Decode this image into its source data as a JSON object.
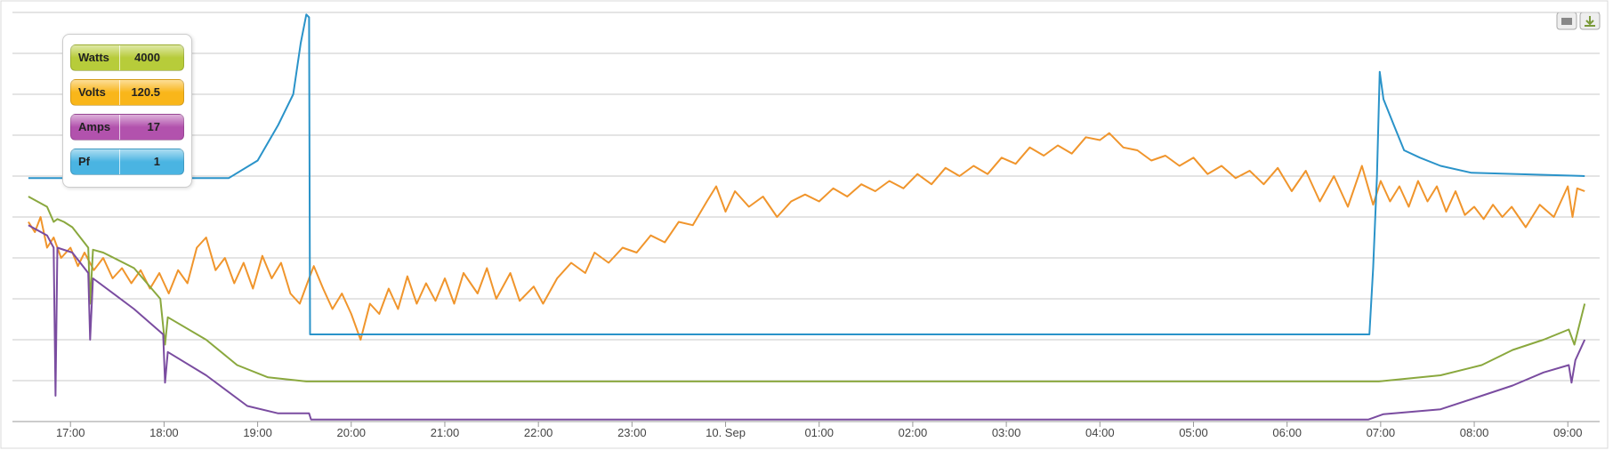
{
  "chart_data": {
    "type": "line",
    "xlim": [
      16.38,
      33.34
    ],
    "xticks": [
      {
        "value": 17,
        "label": "17:00"
      },
      {
        "value": 18,
        "label": "18:00"
      },
      {
        "value": 19,
        "label": "19:00"
      },
      {
        "value": 20,
        "label": "20:00"
      },
      {
        "value": 21,
        "label": "21:00"
      },
      {
        "value": 22,
        "label": "22:00"
      },
      {
        "value": 23,
        "label": "23:00"
      },
      {
        "value": 24,
        "label": "10. Sep"
      },
      {
        "value": 25,
        "label": "01:00"
      },
      {
        "value": 26,
        "label": "02:00"
      },
      {
        "value": 27,
        "label": "03:00"
      },
      {
        "value": 28,
        "label": "04:00"
      },
      {
        "value": 29,
        "label": "05:00"
      },
      {
        "value": 30,
        "label": "06:00"
      },
      {
        "value": 31,
        "label": "07:00"
      },
      {
        "value": 32,
        "label": "08:00"
      },
      {
        "value": 33,
        "label": "09:00"
      }
    ],
    "ylim": [
      0,
      100
    ],
    "yticks": [
      0,
      10,
      20,
      30,
      40,
      50,
      60,
      70,
      80,
      90,
      100
    ],
    "ytick_labels": false,
    "grid": true,
    "series": [
      {
        "name": "Watts",
        "readout": 4000,
        "color": "#8aa83e",
        "legend_color": "#b7cc3a",
        "x": [
          16.55,
          16.75,
          16.82,
          16.86,
          16.93,
          17.02,
          17.19,
          17.21,
          17.24,
          17.35,
          17.68,
          17.96,
          18.01,
          18.04,
          18.45,
          18.78,
          19.11,
          19.52,
          30.98,
          31.64,
          32.08,
          32.41,
          32.74,
          33.01,
          33.07,
          33.18
        ],
        "values": [
          55,
          52.5,
          48.8,
          49.5,
          48.8,
          47.5,
          42.5,
          28.8,
          42,
          41.3,
          37.5,
          30,
          18.8,
          25.5,
          20,
          13.8,
          10.8,
          9.8,
          9.8,
          11.3,
          13.8,
          17.5,
          20,
          22.5,
          18.8,
          28.8
        ]
      },
      {
        "name": "Volts",
        "readout": 120.5,
        "color": "#f0952c",
        "legend_color": "#f9b61a",
        "x": [
          16.55,
          16.62,
          16.68,
          16.75,
          16.82,
          16.9,
          17.0,
          17.08,
          17.15,
          17.25,
          17.35,
          17.45,
          17.55,
          17.65,
          17.75,
          17.85,
          17.95,
          18.05,
          18.15,
          18.25,
          18.35,
          18.45,
          18.55,
          18.65,
          18.75,
          18.85,
          18.95,
          19.05,
          19.15,
          19.25,
          19.35,
          19.45,
          19.55,
          19.6,
          19.7,
          19.8,
          19.9,
          20.0,
          20.1,
          20.2,
          20.3,
          20.4,
          20.5,
          20.6,
          20.7,
          20.8,
          20.9,
          21.0,
          21.1,
          21.2,
          21.35,
          21.45,
          21.55,
          21.7,
          21.8,
          21.95,
          22.05,
          22.2,
          22.35,
          22.5,
          22.6,
          22.75,
          22.9,
          23.05,
          23.2,
          23.35,
          23.5,
          23.65,
          23.8,
          23.9,
          24.0,
          24.1,
          24.25,
          24.4,
          24.55,
          24.7,
          24.85,
          25.0,
          25.15,
          25.3,
          25.45,
          25.6,
          25.75,
          25.9,
          26.05,
          26.2,
          26.35,
          26.5,
          26.65,
          26.8,
          26.95,
          27.1,
          27.25,
          27.4,
          27.55,
          27.7,
          27.85,
          28.0,
          28.1,
          28.25,
          28.4,
          28.55,
          28.7,
          28.85,
          29.0,
          29.15,
          29.3,
          29.45,
          29.6,
          29.75,
          29.9,
          30.05,
          30.2,
          30.35,
          30.5,
          30.65,
          30.8,
          30.92,
          31.0,
          31.1,
          31.2,
          31.3,
          31.4,
          31.5,
          31.6,
          31.7,
          31.8,
          31.9,
          32.0,
          32.1,
          32.2,
          32.3,
          32.4,
          32.55,
          32.7,
          32.85,
          33.0,
          33.05,
          33.1,
          33.18
        ],
        "values": [
          48.8,
          46.3,
          50,
          42.5,
          45,
          40,
          42.5,
          38,
          41.3,
          37,
          40,
          35,
          37.5,
          33.8,
          37,
          32.5,
          36.3,
          31.3,
          37,
          33.8,
          42.5,
          45,
          37,
          40,
          33.8,
          38.8,
          32.5,
          40.5,
          35,
          38.8,
          31.3,
          28.8,
          35,
          38,
          32.5,
          27.5,
          31.3,
          26.3,
          20,
          28.8,
          26.3,
          32.5,
          27.5,
          35.5,
          28.8,
          33.8,
          29.5,
          35,
          28.8,
          36.3,
          31.3,
          37.5,
          30,
          36.3,
          29.5,
          33,
          28.8,
          35,
          38.8,
          36.3,
          41.3,
          38.8,
          42.5,
          41.3,
          45.5,
          43.8,
          48.8,
          48,
          53.8,
          57.5,
          51.3,
          56.3,
          52.5,
          55,
          50,
          53.8,
          55.5,
          53.8,
          57,
          55,
          58,
          56.3,
          58.8,
          57,
          60.5,
          58,
          62,
          60,
          62.5,
          60.5,
          64.5,
          63,
          67,
          65,
          67.5,
          65.5,
          69.5,
          68.8,
          70.5,
          67,
          66.3,
          63.8,
          65,
          62.5,
          64.5,
          60.5,
          62.5,
          59.5,
          61.3,
          58,
          62,
          56.3,
          61.3,
          53.8,
          60,
          52.5,
          62.5,
          53,
          58.8,
          53.8,
          57.5,
          52.5,
          58.8,
          53.8,
          57.5,
          51.3,
          56.3,
          50.5,
          52.5,
          49.5,
          53,
          50,
          52.5,
          47.5,
          53,
          50,
          57.5,
          50,
          57,
          56.3
        ]
      },
      {
        "name": "Amps",
        "readout": 17,
        "color": "#7a4ca0",
        "legend_color": "#b252ad",
        "x": [
          16.55,
          16.75,
          16.82,
          16.84,
          16.86,
          17.02,
          17.19,
          17.21,
          17.24,
          17.68,
          17.99,
          18.01,
          18.04,
          18.45,
          18.89,
          19.22,
          19.55,
          19.57,
          30.87,
          31.03,
          31.64,
          32.08,
          32.41,
          32.74,
          33.01,
          33.04,
          33.08,
          33.18
        ],
        "values": [
          48,
          45.5,
          42.5,
          6.3,
          42.5,
          41.3,
          36.3,
          20,
          35,
          27.5,
          21.3,
          9.5,
          17,
          11.3,
          3.8,
          2,
          2,
          0.5,
          0.5,
          1.8,
          3,
          6.3,
          8.8,
          12,
          13.8,
          9.5,
          15,
          20
        ]
      },
      {
        "name": "Pf",
        "readout": 1,
        "color": "#2a93c9",
        "legend_color": "#4ab4e2",
        "x": [
          16.55,
          18.69,
          19.0,
          19.22,
          19.38,
          19.46,
          19.52,
          19.55,
          19.56,
          30.88,
          30.92,
          30.96,
          30.99,
          31.03,
          31.14,
          31.25,
          31.42,
          31.64,
          31.97,
          33.18
        ],
        "values": [
          59.5,
          59.5,
          63.8,
          72.5,
          80,
          92.5,
          99.5,
          98.8,
          21.3,
          21.3,
          37.5,
          60,
          85.5,
          78.8,
          72.5,
          66.3,
          64.5,
          62.5,
          60.8,
          60
        ]
      }
    ]
  }
}
